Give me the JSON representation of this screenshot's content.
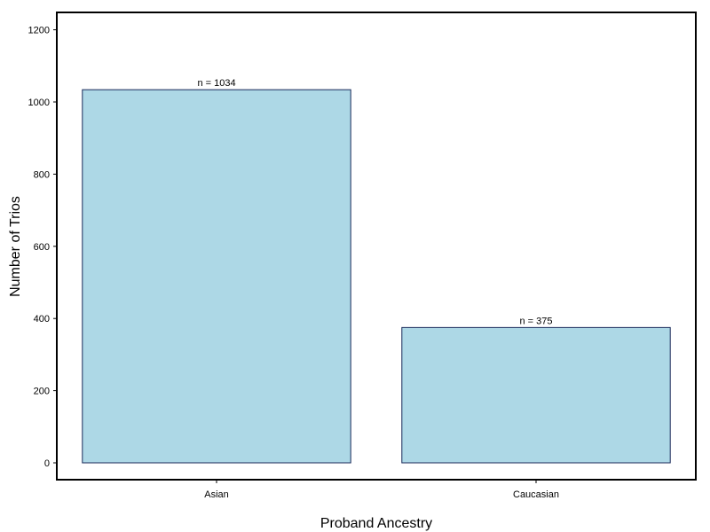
{
  "chart_data": {
    "type": "bar",
    "categories": [
      "Asian",
      "Caucasian"
    ],
    "values": [
      1034,
      375
    ],
    "data_labels": [
      "n = 1034",
      "n = 375"
    ],
    "xlabel": "Proband Ancestry",
    "ylabel": "Number of Trios",
    "ylim": [
      -50,
      1230
    ],
    "yticks": [
      0,
      200,
      400,
      600,
      800,
      1000,
      1200
    ],
    "grid": false,
    "bar_color": "#add8e6",
    "bar_edge_color": "#1a2a5a"
  }
}
